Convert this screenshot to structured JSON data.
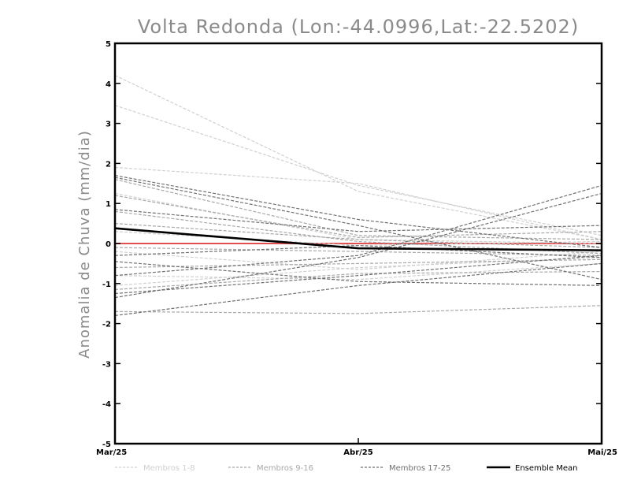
{
  "chart_data": {
    "type": "line",
    "title": "Volta Redonda (Lon:-44.0996,Lat:-22.5202)",
    "xlabel": "",
    "ylabel": "Anomalia de Chuva (mm/dia)",
    "categories": [
      "Mar/25",
      "Abr/25",
      "Mai/25"
    ],
    "ylim": [
      -5,
      5
    ],
    "yticks": [
      -5,
      -4,
      -3,
      -2,
      -1,
      0,
      1,
      2,
      3,
      4,
      5
    ],
    "grid": false,
    "legend": {
      "placement": "bottom",
      "entries": [
        {
          "label": "Membros 1-8",
          "color": "#d0d0d0",
          "style": "dashed"
        },
        {
          "label": "Membros 9-16",
          "color": "#a8a8a8",
          "style": "dashed"
        },
        {
          "label": "Membros 17-25",
          "color": "#707070",
          "style": "dashed"
        },
        {
          "label": "Ensemble Mean",
          "color": "#000000",
          "style": "solid"
        }
      ]
    },
    "zero_line_color": "#e05050",
    "series": [
      {
        "group": "Membros 1-8",
        "values": [
          4.2,
          1.3,
          0.1
        ]
      },
      {
        "group": "Membros 1-8",
        "values": [
          3.45,
          1.45,
          0.2
        ]
      },
      {
        "group": "Membros 1-8",
        "values": [
          1.9,
          1.5,
          0.1
        ]
      },
      {
        "group": "Membros 1-8",
        "values": [
          1.25,
          0.1,
          0.0
        ]
      },
      {
        "group": "Membros 1-8",
        "values": [
          0.3,
          -0.05,
          0.05
        ]
      },
      {
        "group": "Membros 1-8",
        "values": [
          -0.2,
          -0.65,
          -0.2
        ]
      },
      {
        "group": "Membros 1-8",
        "values": [
          -0.8,
          -0.9,
          -0.5
        ]
      },
      {
        "group": "Membros 1-8",
        "values": [
          -1.05,
          -0.6,
          -0.35
        ]
      },
      {
        "group": "Membros 9-16",
        "values": [
          1.6,
          0.2,
          0.1
        ]
      },
      {
        "group": "Membros 9-16",
        "values": [
          1.2,
          0.15,
          0.3
        ]
      },
      {
        "group": "Membros 9-16",
        "values": [
          0.8,
          0.05,
          -0.25
        ]
      },
      {
        "group": "Membros 9-16",
        "values": [
          0.5,
          0.1,
          -0.1
        ]
      },
      {
        "group": "Membros 9-16",
        "values": [
          -0.1,
          -0.2,
          -0.3
        ]
      },
      {
        "group": "Membros 9-16",
        "values": [
          -0.6,
          -0.5,
          -0.4
        ]
      },
      {
        "group": "Membros 9-16",
        "values": [
          -1.15,
          -0.75,
          -0.7
        ]
      },
      {
        "group": "Membros 9-16",
        "values": [
          -1.7,
          -1.75,
          -1.55
        ]
      },
      {
        "group": "Membros 17-25",
        "values": [
          1.7,
          0.6,
          -0.1
        ]
      },
      {
        "group": "Membros 17-25",
        "values": [
          1.65,
          0.45,
          -0.9
        ]
      },
      {
        "group": "Membros 17-25",
        "values": [
          0.85,
          0.3,
          0.45
        ]
      },
      {
        "group": "Membros 17-25",
        "values": [
          -0.3,
          -0.05,
          -0.35
        ]
      },
      {
        "group": "Membros 17-25",
        "values": [
          -0.45,
          -0.95,
          -1.05
        ]
      },
      {
        "group": "Membros 17-25",
        "values": [
          -0.8,
          -0.3,
          1.45
        ]
      },
      {
        "group": "Membros 17-25",
        "values": [
          -1.25,
          -0.8,
          -0.3
        ]
      },
      {
        "group": "Membros 17-25",
        "values": [
          -1.35,
          -0.35,
          1.25
        ]
      },
      {
        "group": "Membros 17-25",
        "values": [
          -1.8,
          -1.05,
          -0.5
        ]
      },
      {
        "group": "Ensemble Mean",
        "values": [
          0.38,
          -0.12,
          -0.17
        ]
      }
    ]
  }
}
